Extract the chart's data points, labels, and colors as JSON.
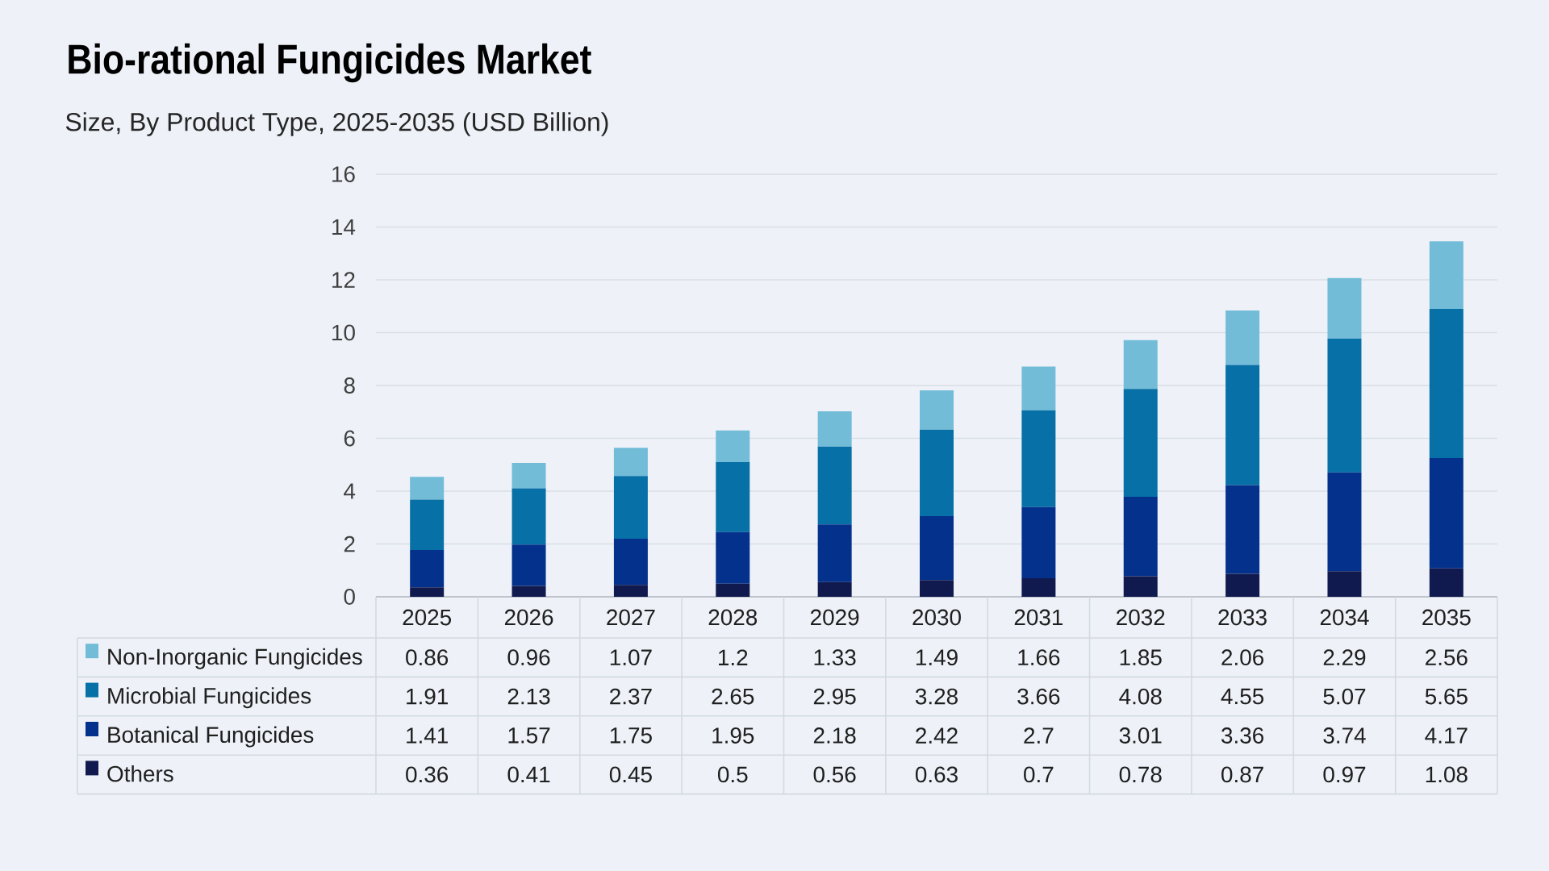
{
  "chart_data": {
    "type": "bar",
    "stacked": true,
    "title": "Bio-rational Fungicides Market",
    "subtitle": "Size, By Product Type, 2025-2035 (USD Billion)",
    "categories": [
      "2025",
      "2026",
      "2027",
      "2028",
      "2029",
      "2030",
      "2031",
      "2032",
      "2033",
      "2034",
      "2035"
    ],
    "series": [
      {
        "name": "Others",
        "color": "#111a4f",
        "values": [
          0.36,
          0.41,
          0.45,
          0.5,
          0.56,
          0.63,
          0.7,
          0.78,
          0.87,
          0.97,
          1.08
        ]
      },
      {
        "name": "Botanical Fungicides",
        "color": "#04318b",
        "values": [
          1.41,
          1.57,
          1.75,
          1.95,
          2.18,
          2.42,
          2.7,
          3.01,
          3.36,
          3.74,
          4.17
        ]
      },
      {
        "name": "Microbial Fungicides",
        "color": "#0770a6",
        "values": [
          1.91,
          2.13,
          2.37,
          2.65,
          2.95,
          3.28,
          3.66,
          4.08,
          4.55,
          5.07,
          5.65
        ]
      },
      {
        "name": "Non-Inorganic Fungicides",
        "color": "#72bcd8",
        "values": [
          0.86,
          0.96,
          1.07,
          1.2,
          1.33,
          1.49,
          1.66,
          1.85,
          2.06,
          2.29,
          2.56
        ]
      }
    ],
    "ylim": [
      0,
      16
    ],
    "yticks": [
      0,
      2,
      4,
      6,
      8,
      10,
      12,
      14,
      16
    ],
    "grid": "y",
    "legend": "bottom left",
    "data_labels": true
  }
}
